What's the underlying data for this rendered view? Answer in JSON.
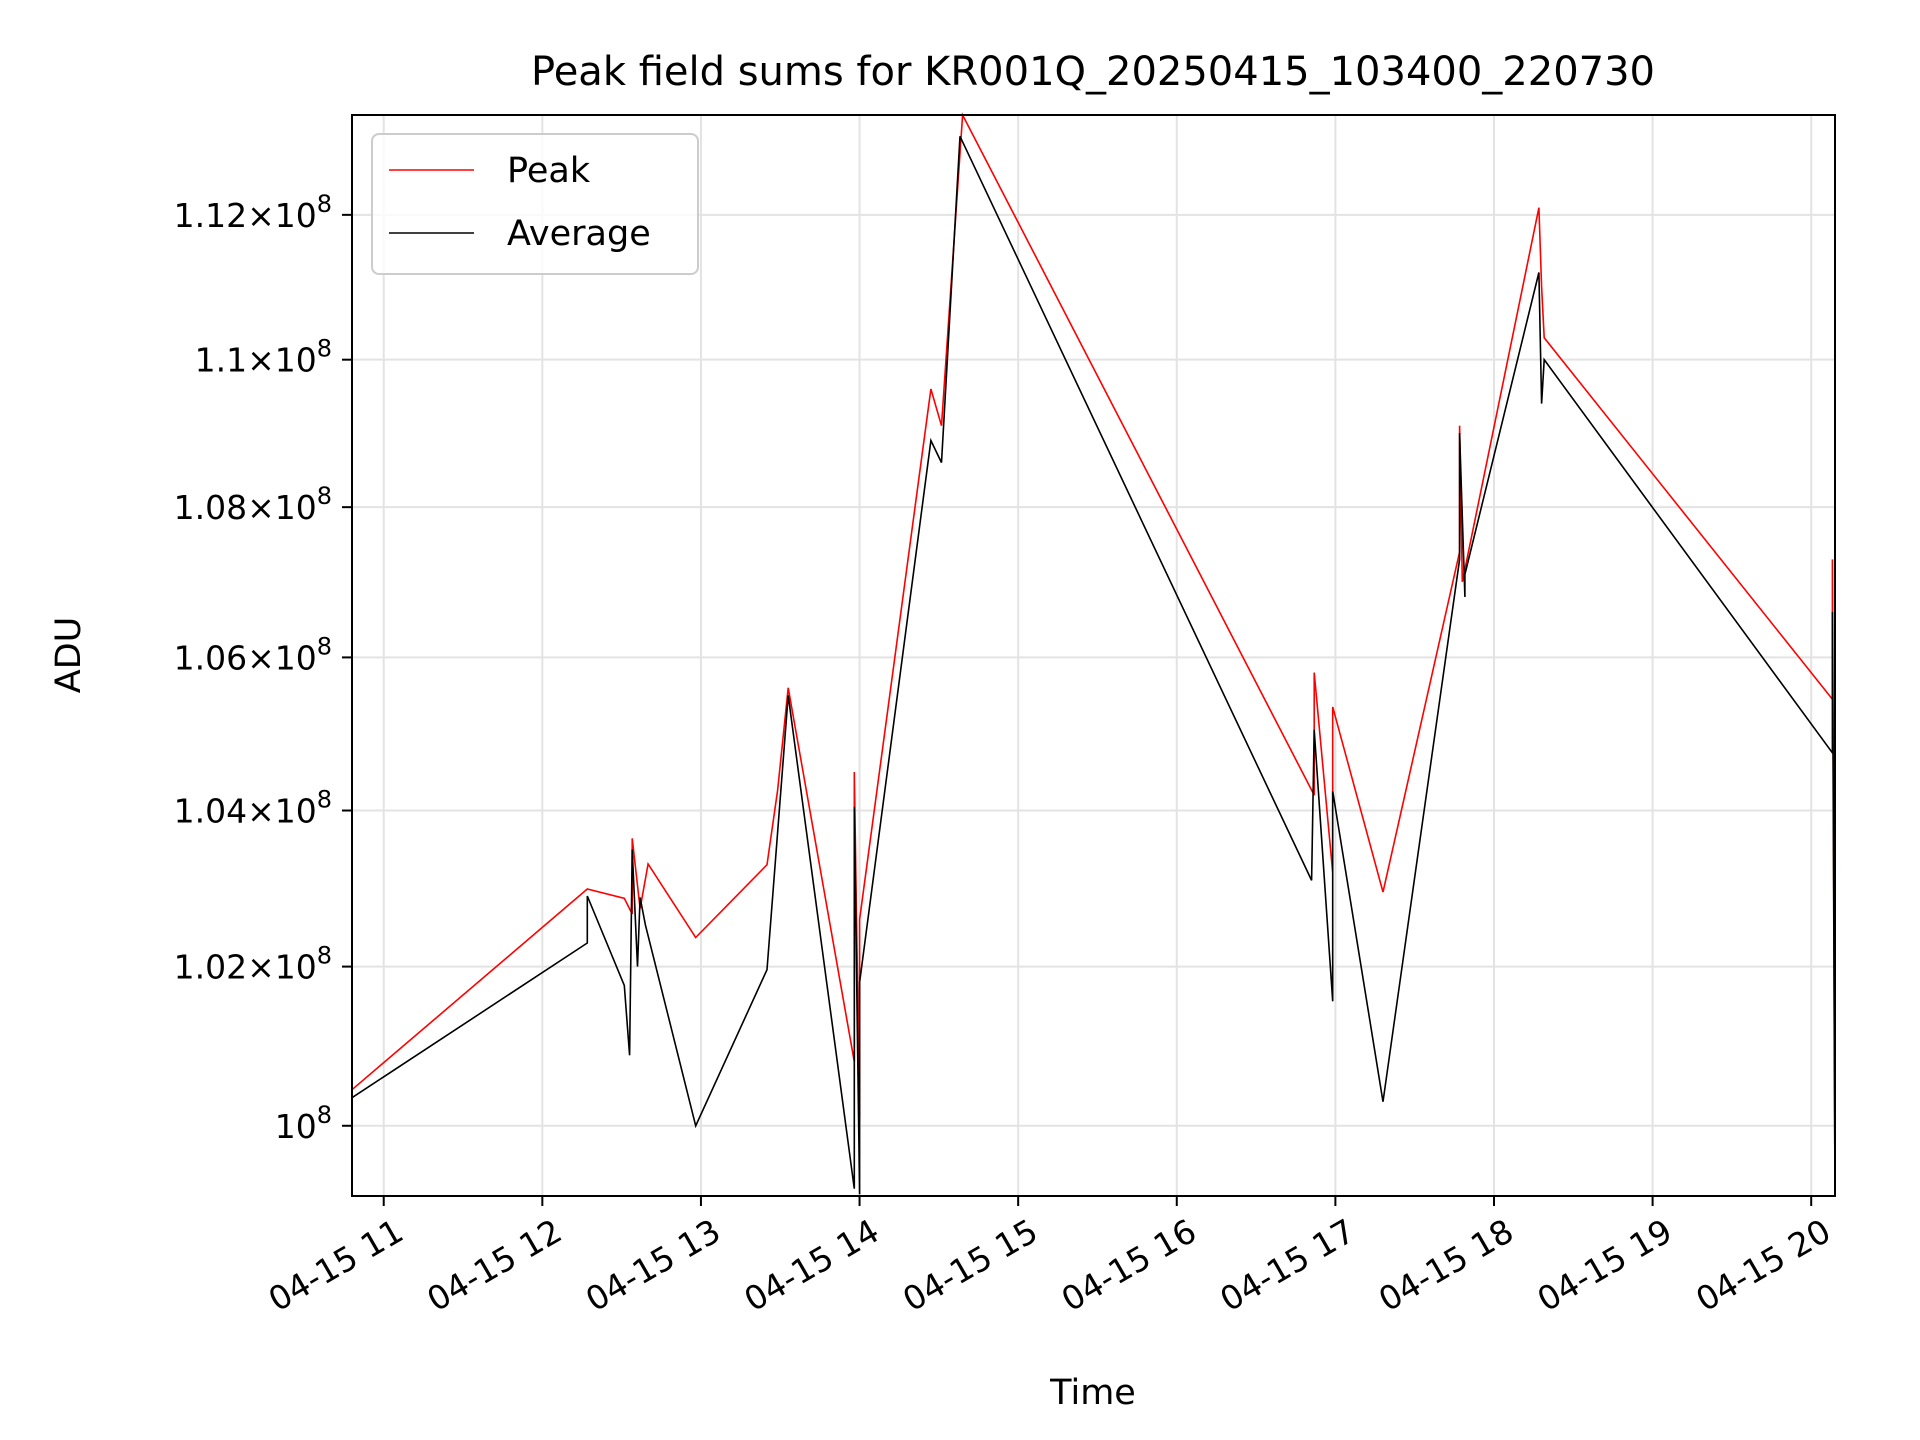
{
  "chart_data": {
    "type": "line",
    "title": "Peak field sums for KR001Q_20250415_103400_220730",
    "xlabel": "Time",
    "ylabel": "ADU",
    "x_axis_type": "datetime",
    "xlim": [
      "2025-04-15 10:48",
      "2025-04-15 20:09"
    ],
    "ylim": [
      99130000,
      113400000
    ],
    "y_scale": "log",
    "grid": true,
    "legend_position": "upper-left",
    "x_ticks": [
      {
        "value": "2025-04-15 11:00",
        "label": "04-15 11"
      },
      {
        "value": "2025-04-15 12:00",
        "label": "04-15 12"
      },
      {
        "value": "2025-04-15 13:00",
        "label": "04-15 13"
      },
      {
        "value": "2025-04-15 14:00",
        "label": "04-15 14"
      },
      {
        "value": "2025-04-15 15:00",
        "label": "04-15 15"
      },
      {
        "value": "2025-04-15 16:00",
        "label": "04-15 16"
      },
      {
        "value": "2025-04-15 17:00",
        "label": "04-15 17"
      },
      {
        "value": "2025-04-15 18:00",
        "label": "04-15 18"
      },
      {
        "value": "2025-04-15 19:00",
        "label": "04-15 19"
      },
      {
        "value": "2025-04-15 20:00",
        "label": "04-15 20"
      }
    ],
    "y_ticks": [
      {
        "value": 100000000,
        "mantissa": "",
        "exp": "8",
        "base": "10"
      },
      {
        "value": 102000000,
        "mantissa": "1.02",
        "exp": "8",
        "base": "10"
      },
      {
        "value": 104000000,
        "mantissa": "1.04",
        "exp": "8",
        "base": "10"
      },
      {
        "value": 106000000,
        "mantissa": "1.06",
        "exp": "8",
        "base": "10"
      },
      {
        "value": 108000000,
        "mantissa": "1.08",
        "exp": "8",
        "base": "10"
      },
      {
        "value": 110000000,
        "mantissa": "1.1",
        "exp": "8",
        "base": "10"
      },
      {
        "value": 112000000,
        "mantissa": "1.12",
        "exp": "8",
        "base": "10"
      }
    ],
    "series": [
      {
        "name": "Peak",
        "color": "#ff0000",
        "points": [
          [
            "2025-04-15 10:48",
            101100000
          ],
          [
            "2025-04-15 10:48",
            100450000
          ],
          [
            "2025-04-15 12:17",
            102990000
          ],
          [
            "2025-04-15 12:31",
            102870000
          ],
          [
            "2025-04-15 12:34",
            102670000
          ],
          [
            "2025-04-15 12:34",
            103640000
          ],
          [
            "2025-04-15 12:37",
            102740000
          ],
          [
            "2025-04-15 12:40",
            103310000
          ],
          [
            "2025-04-15 12:58",
            102370000
          ],
          [
            "2025-04-15 13:25",
            103300000
          ],
          [
            "2025-04-15 13:29",
            104260000
          ],
          [
            "2025-04-15 13:33",
            105600000
          ],
          [
            "2025-04-15 13:58",
            100800000
          ],
          [
            "2025-04-15 13:58",
            104500000
          ],
          [
            "2025-04-15 14:00",
            100100000
          ],
          [
            "2025-04-15 14:00",
            102600000
          ],
          [
            "2025-04-15 14:27",
            109600000
          ],
          [
            "2025-04-15 14:31",
            109100000
          ],
          [
            "2025-04-15 14:39",
            113400000
          ],
          [
            "2025-04-15 16:52",
            104200000
          ],
          [
            "2025-04-15 16:52",
            105800000
          ],
          [
            "2025-04-15 16:59",
            103200000
          ],
          [
            "2025-04-15 16:59",
            105350000
          ],
          [
            "2025-04-15 17:18",
            102950000
          ],
          [
            "2025-04-15 17:47",
            107400000
          ],
          [
            "2025-04-15 17:47",
            109100000
          ],
          [
            "2025-04-15 17:48",
            107000000
          ],
          [
            "2025-04-15 18:17",
            112100000
          ],
          [
            "2025-04-15 18:18",
            111000000
          ],
          [
            "2025-04-15 18:19",
            110300000
          ],
          [
            "2025-04-15 20:08",
            105450000
          ],
          [
            "2025-04-15 20:08",
            107300000
          ],
          [
            "2025-04-15 20:09",
            99130000
          ]
        ]
      },
      {
        "name": "Average",
        "color": "#000000",
        "points": [
          [
            "2025-04-15 10:48",
            100350000
          ],
          [
            "2025-04-15 12:17",
            102300000
          ],
          [
            "2025-04-15 12:17",
            102900000
          ],
          [
            "2025-04-15 12:31",
            101760000
          ],
          [
            "2025-04-15 12:33",
            100880000
          ],
          [
            "2025-04-15 12:34",
            103500000
          ],
          [
            "2025-04-15 12:36",
            102000000
          ],
          [
            "2025-04-15 12:37",
            102880000
          ],
          [
            "2025-04-15 12:39",
            102530000
          ],
          [
            "2025-04-15 12:58",
            100000000
          ],
          [
            "2025-04-15 13:25",
            101960000
          ],
          [
            "2025-04-15 13:33",
            105500000
          ],
          [
            "2025-04-15 13:58",
            99220000
          ],
          [
            "2025-04-15 13:58",
            104050000
          ],
          [
            "2025-04-15 14:00",
            99150000
          ],
          [
            "2025-04-15 14:00",
            101800000
          ],
          [
            "2025-04-15 14:27",
            108900000
          ],
          [
            "2025-04-15 14:31",
            108600000
          ],
          [
            "2025-04-15 14:38",
            113100000
          ],
          [
            "2025-04-15 16:51",
            103100000
          ],
          [
            "2025-04-15 16:52",
            105050000
          ],
          [
            "2025-04-15 16:59",
            101560000
          ],
          [
            "2025-04-15 16:59",
            104250000
          ],
          [
            "2025-04-15 17:18",
            100300000
          ],
          [
            "2025-04-15 17:47",
            107300000
          ],
          [
            "2025-04-15 17:47",
            109000000
          ],
          [
            "2025-04-15 17:49",
            106800000
          ],
          [
            "2025-04-15 17:49",
            107100000
          ],
          [
            "2025-04-15 18:17",
            111200000
          ],
          [
            "2025-04-15 18:18",
            109400000
          ],
          [
            "2025-04-15 18:19",
            110000000
          ],
          [
            "2025-04-15 20:08",
            104750000
          ],
          [
            "2025-04-15 20:08",
            106600000
          ],
          [
            "2025-04-15 20:09",
            99130000
          ]
        ]
      }
    ]
  }
}
